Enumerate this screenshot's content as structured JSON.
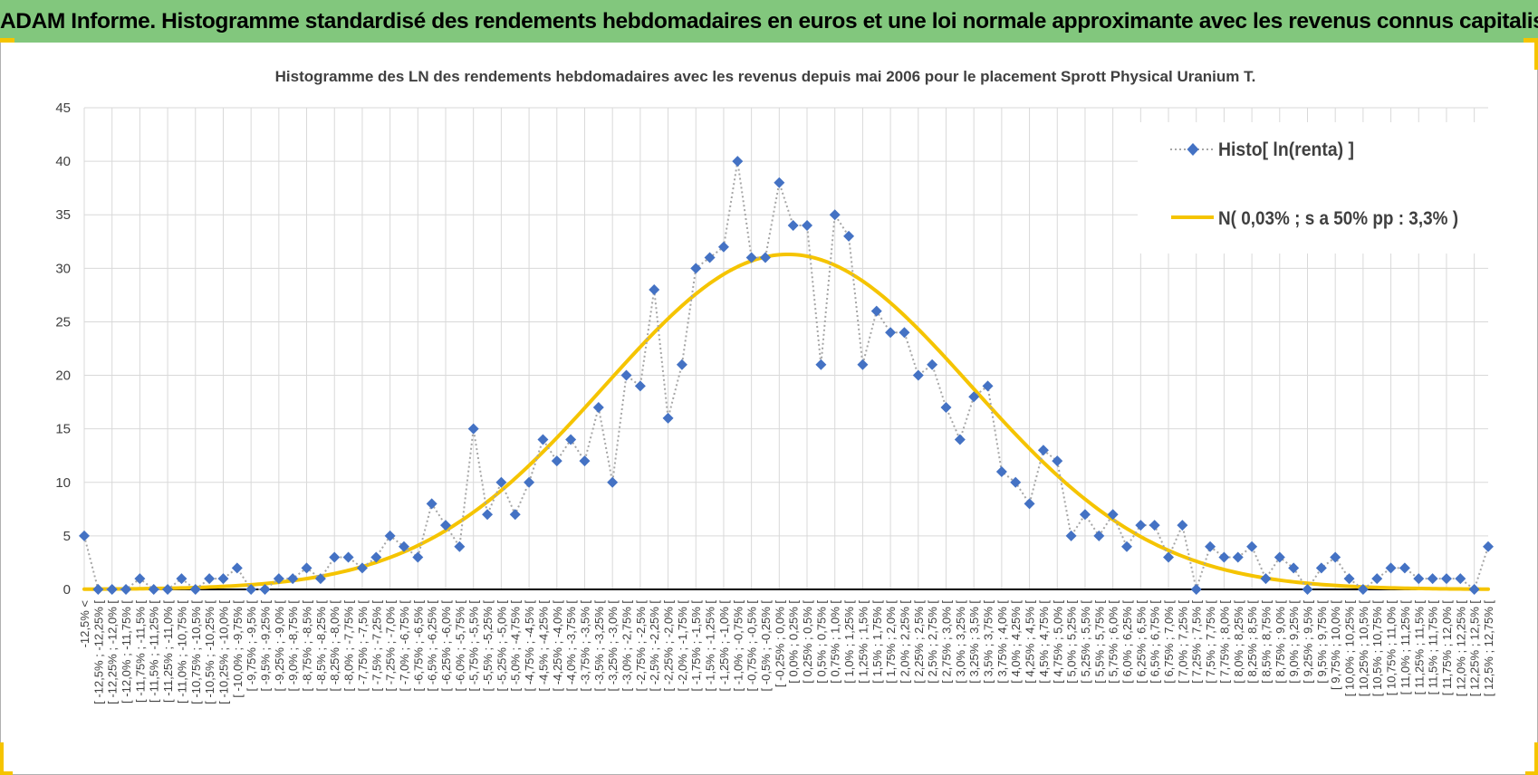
{
  "banner": {
    "title": "ADAM Informe. Histogramme standardisé des rendements hebdomadaires en euros et une loi normale approximante avec les revenus connus capitalisés"
  },
  "colors": {
    "banner_bg": "#82c77d",
    "histo_marker": "#4472c4",
    "histo_line": "#a6a6a6",
    "normal_curve": "#f5c400",
    "grid": "#d9d9d9",
    "axis": "#000000",
    "text": "#404040"
  },
  "chart_data": {
    "type": "line",
    "title": "Histogramme des LN des rendements hebdomadaires avec les revenus depuis mai 2006 pour le placement Sprott Physical Uranium T.",
    "xlabel": "",
    "ylabel": "",
    "ylim": [
      0,
      45
    ],
    "yticks": [
      0,
      5,
      10,
      15,
      20,
      25,
      30,
      35,
      40,
      45
    ],
    "grid": true,
    "legend_position": "top-right",
    "categories": [
      "-12,5% <",
      "[ -12,5% ; -12,25% [",
      "[ -12,25% ; -12,0% [",
      "[ -12,0% ; -11,75% [",
      "[ -11,75% ; -11,5% [",
      "[ -11,5% ; -11,25% [",
      "[ -11,25% ; -11,0% [",
      "[ -11,0% ; -10,75% [",
      "[ -10,75% ; -10,5% [",
      "[ -10,5% ; -10,25% [",
      "[ -10,25% ; -10,0% [",
      "[ -10,0% ; -9,75% [",
      "[ -9,75% ; -9,5% [",
      "[ -9,5% ; -9,25% [",
      "[ -9,25% ; -9,0% [",
      "[ -9,0% ; -8,75% [",
      "[ -8,75% ; -8,5% [",
      "[ -8,5% ; -8,25% [",
      "[ -8,25% ; -8,0% [",
      "[ -8,0% ; -7,75% [",
      "[ -7,75% ; -7,5% [",
      "[ -7,5% ; -7,25% [",
      "[ -7,25% ; -7,0% [",
      "[ -7,0% ; -6,75% [",
      "[ -6,75% ; -6,5% [",
      "[ -6,5% ; -6,25% [",
      "[ -6,25% ; -6,0% [",
      "[ -6,0% ; -5,75% [",
      "[ -5,75% ; -5,5% [",
      "[ -5,5% ; -5,25% [",
      "[ -5,25% ; -5,0% [",
      "[ -5,0% ; -4,75% [",
      "[ -4,75% ; -4,5% [",
      "[ -4,5% ; -4,25% [",
      "[ -4,25% ; -4,0% [",
      "[ -4,0% ; -3,75% [",
      "[ -3,75% ; -3,5% [",
      "[ -3,5% ; -3,25% [",
      "[ -3,25% ; -3,0% [",
      "[ -3,0% ; -2,75% [",
      "[ -2,75% ; -2,5% [",
      "[ -2,5% ; -2,25% [",
      "[ -2,25% ; -2,0% [",
      "[ -2,0% ; -1,75% [",
      "[ -1,75% ; -1,5% [",
      "[ -1,5% ; -1,25% [",
      "[ -1,25% ; -1,0% [",
      "[ -1,0% ; -0,75% [",
      "[ -0,75% ; -0,5% [",
      "[ -0,5% ; -0,25% [",
      "[ -0,25% ; 0,0% [",
      "[ 0,0% ; 0,25% [",
      "[ 0,25% ; 0,5% [",
      "[ 0,5% ; 0,75% [",
      "[ 0,75% ; 1,0% [",
      "[ 1,0% ; 1,25% [",
      "[ 1,25% ; 1,5% [",
      "[ 1,5% ; 1,75% [",
      "[ 1,75% ; 2,0% [",
      "[ 2,0% ; 2,25% [",
      "[ 2,25% ; 2,5% [",
      "[ 2,5% ; 2,75% [",
      "[ 2,75% ; 3,0% [",
      "[ 3,0% ; 3,25% [",
      "[ 3,25% ; 3,5% [",
      "[ 3,5% ; 3,75% [",
      "[ 3,75% ; 4,0% [",
      "[ 4,0% ; 4,25% [",
      "[ 4,25% ; 4,5% [",
      "[ 4,5% ; 4,75% [",
      "[ 4,75% ; 5,0% [",
      "[ 5,0% ; 5,25% [",
      "[ 5,25% ; 5,5% [",
      "[ 5,5% ; 5,75% [",
      "[ 5,75% ; 6,0% [",
      "[ 6,0% ; 6,25% [",
      "[ 6,25% ; 6,5% [",
      "[ 6,5% ; 6,75% [",
      "[ 6,75% ; 7,0% [",
      "[ 7,0% ; 7,25% [",
      "[ 7,25% ; 7,5% [",
      "[ 7,5% ; 7,75% [",
      "[ 7,75% ; 8,0% [",
      "[ 8,0% ; 8,25% [",
      "[ 8,25% ; 8,5% [",
      "[ 8,5% ; 8,75% [",
      "[ 8,75% ; 9,0% [",
      "[ 9,0% ; 9,25% [",
      "[ 9,25% ; 9,5% [",
      "[ 9,5% ; 9,75% [",
      "[ 9,75% ; 10,0% [",
      "[ 10,0% ; 10,25% [",
      "[ 10,25% ; 10,5% [",
      "[ 10,5% ; 10,75% [",
      "[ 10,75% ; 11,0% [",
      "[ 11,0% ; 11,25% [",
      "[ 11,25% ; 11,5% [",
      "[ 11,5% ; 11,75% [",
      "[ 11,75% ; 12,0% [",
      "[ 12,0% ; 12,25% [",
      "[ 12,25% ; 12,5% [",
      "[ 12,5% ; 12,75% ["
    ],
    "series": [
      {
        "name": "Histo[ ln(renta) ]",
        "kind": "markers-dotted",
        "values": [
          5,
          0,
          0,
          0,
          1,
          0,
          0,
          1,
          0,
          1,
          1,
          2,
          0,
          0,
          1,
          1,
          2,
          1,
          3,
          3,
          2,
          3,
          5,
          4,
          3,
          8,
          6,
          4,
          15,
          7,
          10,
          7,
          10,
          14,
          12,
          14,
          12,
          17,
          10,
          20,
          19,
          28,
          16,
          21,
          30,
          31,
          32,
          40,
          31,
          31,
          38,
          34,
          34,
          21,
          35,
          33,
          21,
          26,
          24,
          24,
          20,
          21,
          17,
          14,
          18,
          19,
          11,
          10,
          8,
          13,
          12,
          5,
          7,
          5,
          7,
          4,
          6,
          6,
          3,
          6,
          0,
          4,
          3,
          3,
          4,
          1,
          3,
          2,
          0,
          2,
          3,
          1,
          0,
          1,
          2,
          2,
          1,
          1,
          1,
          1,
          0,
          4
        ]
      },
      {
        "name": "N( 0,03% ; s a 50% pp : 3,3% )",
        "kind": "smooth-line",
        "mean": 0.03,
        "sd": 3.3,
        "peak": 31.3
      }
    ]
  }
}
